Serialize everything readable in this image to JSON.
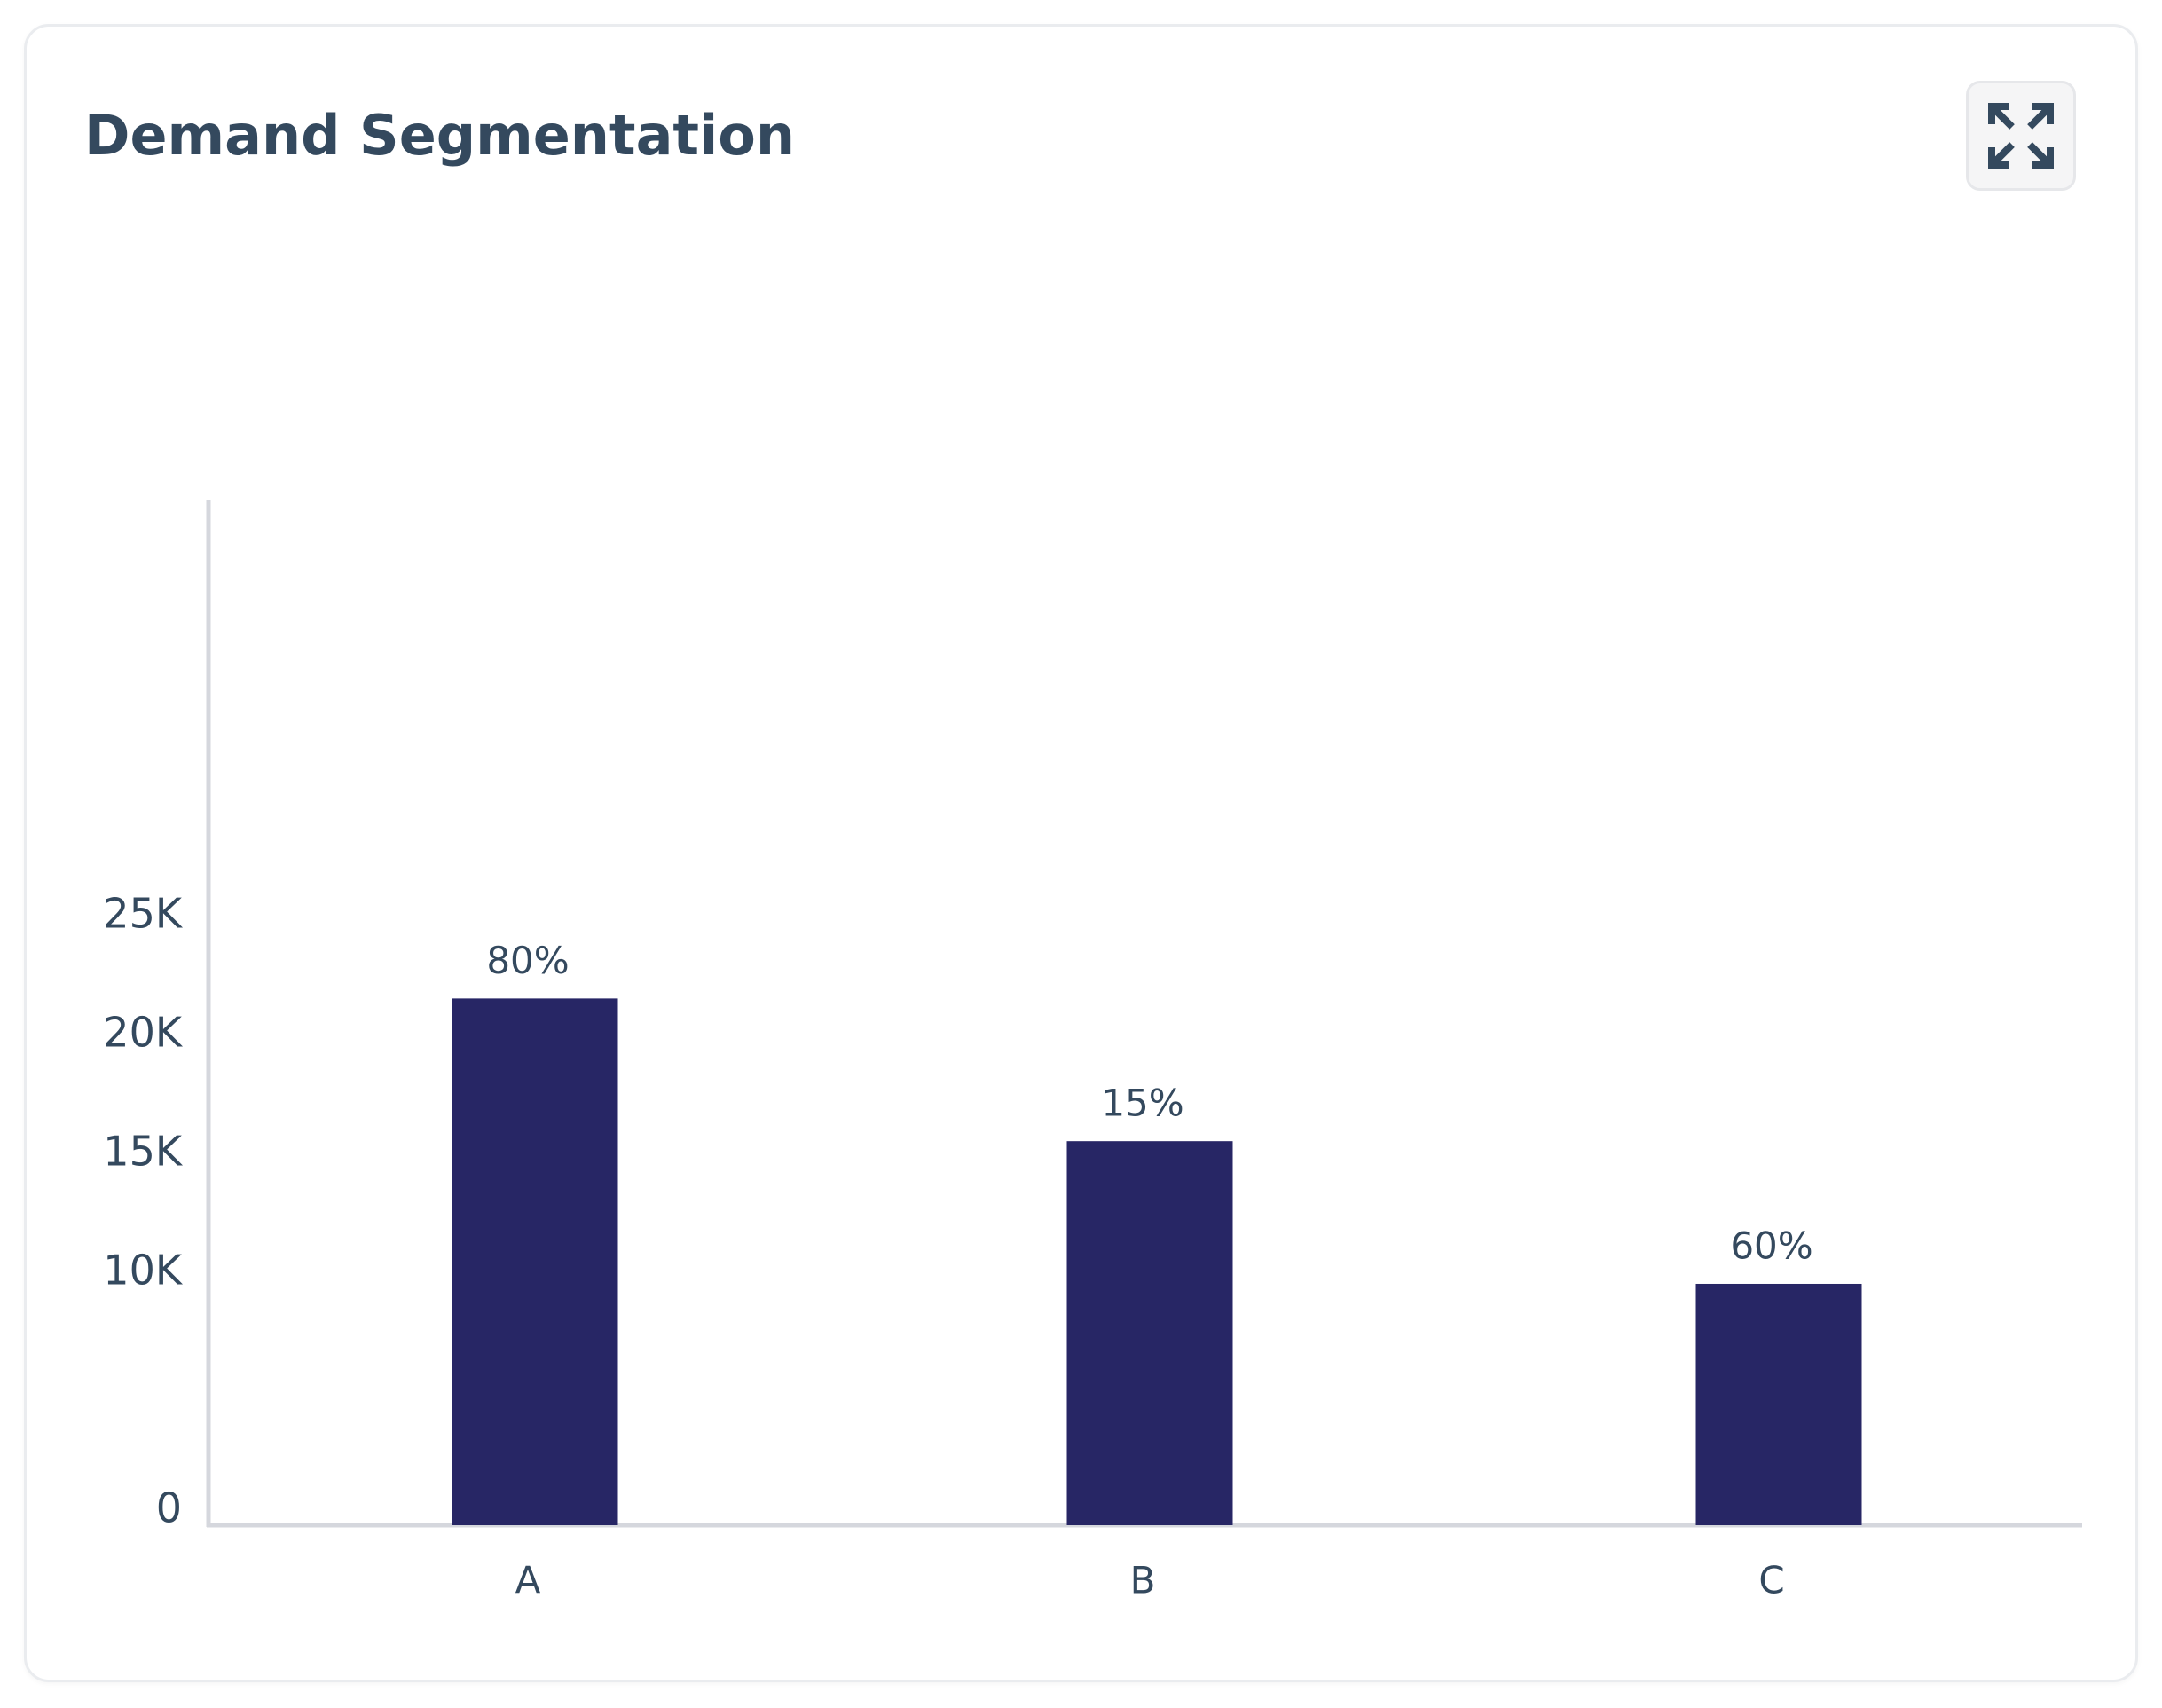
{
  "title": "Demand Segmentation",
  "expand_icon": "expand-arrows-icon",
  "colors": {
    "bar": "#272665",
    "text": "#34495e",
    "axis": "#d5d7dd"
  },
  "chart_data": {
    "type": "bar",
    "categories": [
      "A",
      "B",
      "C"
    ],
    "values": [
      22150,
      16150,
      10150
    ],
    "data_labels": [
      "80%",
      "15%",
      "60%"
    ],
    "yticks": [
      0,
      10000,
      15000,
      20000,
      25000
    ],
    "ytick_labels": [
      "0",
      "10K",
      "15K",
      "20K",
      "25K"
    ],
    "ylim": [
      0,
      25000
    ],
    "grid": false,
    "legend": "none",
    "xlabel": "",
    "ylabel": ""
  }
}
